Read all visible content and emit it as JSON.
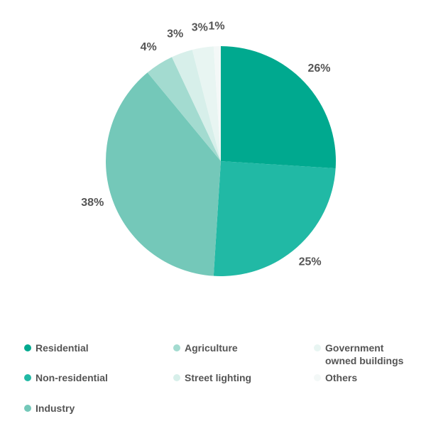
{
  "chart_data": {
    "type": "pie",
    "categories": [
      "Residential",
      "Non-residential",
      "Industry",
      "Agriculture",
      "Street lighting",
      "Government owned buildings",
      "Others"
    ],
    "values": [
      26,
      25,
      38,
      4,
      3,
      3,
      1
    ],
    "labels": [
      "26%",
      "25%",
      "38%",
      "4%",
      "3%",
      "3%",
      "1%"
    ],
    "colors": [
      "#00a98f",
      "#21b9a5",
      "#74c8b9",
      "#a3dbd0",
      "#d7efea",
      "#e8f5f2",
      "#f3f8f7"
    ],
    "legend_position": "bottom",
    "title": ""
  },
  "legend": [
    {
      "label": "Residential",
      "color": "#00a98f"
    },
    {
      "label": "Non-residential",
      "color": "#21b9a5"
    },
    {
      "label": "Industry",
      "color": "#74c8b9"
    },
    {
      "label": "Agriculture",
      "color": "#a3dbd0"
    },
    {
      "label": "Street lighting",
      "color": "#d7efea"
    },
    {
      "label": "Government owned buildings",
      "color": "#e8f5f2"
    },
    {
      "label": "Others",
      "color": "#f3f8f7"
    }
  ]
}
